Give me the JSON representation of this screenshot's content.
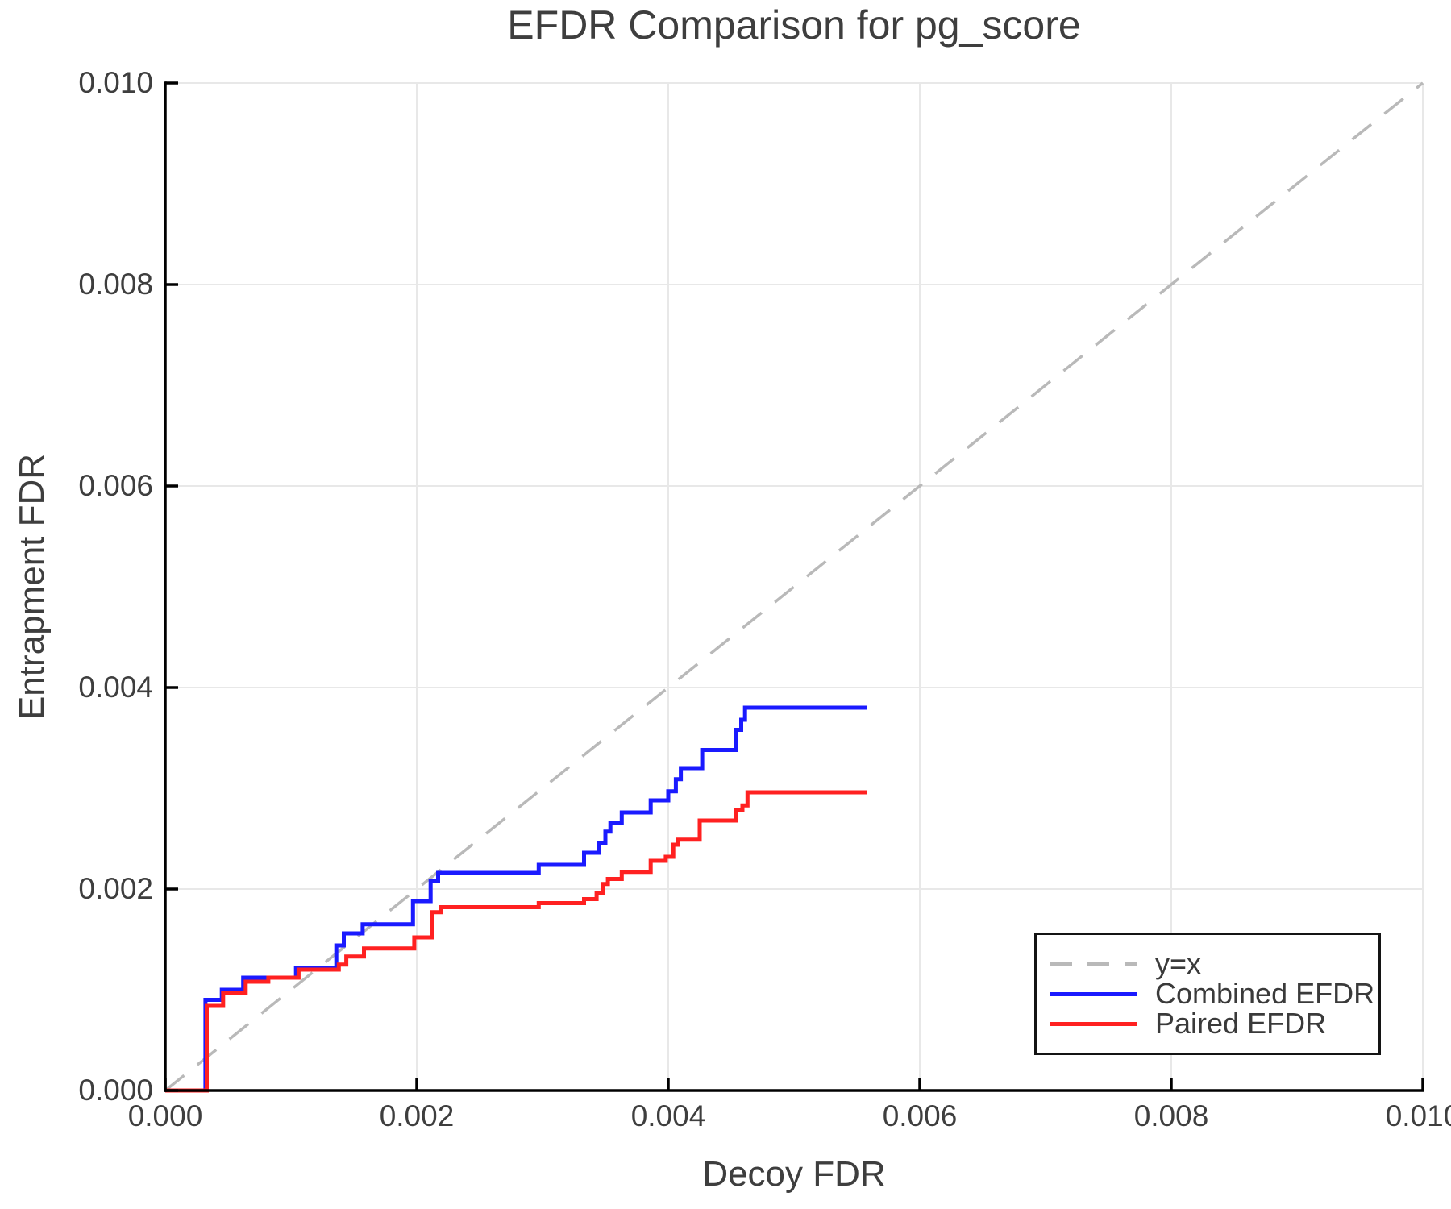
{
  "chart_data": {
    "type": "line",
    "title": "EFDR Comparison for pg_score",
    "xlabel": "Decoy FDR",
    "ylabel": "Entrapment FDR",
    "xlim": [
      0,
      0.01
    ],
    "ylim": [
      0,
      0.01
    ],
    "grid": true,
    "x_ticks": [
      0,
      0.002,
      0.004,
      0.006,
      0.008,
      0.01
    ],
    "x_tick_labels": [
      "0.000",
      "0.002",
      "0.004",
      "0.006",
      "0.008",
      "0.010"
    ],
    "y_ticks": [
      0,
      0.002,
      0.004,
      0.006,
      0.008,
      0.01
    ],
    "y_tick_labels": [
      "0.000",
      "0.002",
      "0.004",
      "0.006",
      "0.008",
      "0.010"
    ],
    "colors": {
      "grid": "#e8e8e8",
      "spine": "#000000",
      "text": "#3e3e3e",
      "reference": "#b9b9b9",
      "combined": "#1a1aff",
      "paired": "#ff2121"
    },
    "legend": {
      "position": "lower right",
      "entries": [
        {
          "label": "y=x",
          "style": "dashed",
          "color": "#b9b9b9"
        },
        {
          "label": "Combined EFDR",
          "style": "solid",
          "color": "#1a1aff"
        },
        {
          "label": "Paired EFDR",
          "style": "solid",
          "color": "#ff2121"
        }
      ]
    },
    "reference_line": {
      "label": "y=x",
      "from": [
        0,
        0
      ],
      "to": [
        0.01,
        0.01
      ],
      "dashed": true,
      "color": "#b9b9b9"
    },
    "series": [
      {
        "name": "Combined EFDR",
        "color": "#1a1aff",
        "step": true,
        "start": [
          0,
          0
        ],
        "end_x": 0.00558,
        "steps": [
          [
            0.00032,
            0.0009
          ],
          [
            0.00045,
            0.001
          ],
          [
            0.00062,
            0.00112
          ],
          [
            0.00104,
            0.00122
          ],
          [
            0.00136,
            0.00144
          ],
          [
            0.00142,
            0.00156
          ],
          [
            0.00157,
            0.00165
          ],
          [
            0.00197,
            0.00188
          ],
          [
            0.00211,
            0.00208
          ],
          [
            0.00217,
            0.00216
          ],
          [
            0.00297,
            0.00224
          ],
          [
            0.00333,
            0.00236
          ],
          [
            0.00345,
            0.00246
          ],
          [
            0.0035,
            0.00257
          ],
          [
            0.00354,
            0.00266
          ],
          [
            0.00363,
            0.00276
          ],
          [
            0.00386,
            0.00288
          ],
          [
            0.004,
            0.00297
          ],
          [
            0.00406,
            0.00309
          ],
          [
            0.0041,
            0.0032
          ],
          [
            0.00427,
            0.00338
          ],
          [
            0.00454,
            0.00358
          ],
          [
            0.00458,
            0.00368
          ],
          [
            0.00461,
            0.0038
          ]
        ]
      },
      {
        "name": "Paired EFDR",
        "color": "#ff2121",
        "step": true,
        "start": [
          0,
          0
        ],
        "end_x": 0.00558,
        "steps": [
          [
            0.00033,
            0.00084
          ],
          [
            0.00046,
            0.00097
          ],
          [
            0.00064,
            0.00108
          ],
          [
            0.00082,
            0.00112
          ],
          [
            0.00106,
            0.0012
          ],
          [
            0.00138,
            0.00125
          ],
          [
            0.00144,
            0.00133
          ],
          [
            0.00158,
            0.00141
          ],
          [
            0.00198,
            0.00152
          ],
          [
            0.00212,
            0.00177
          ],
          [
            0.00219,
            0.00182
          ],
          [
            0.00297,
            0.00186
          ],
          [
            0.00333,
            0.0019
          ],
          [
            0.00343,
            0.00196
          ],
          [
            0.00348,
            0.00205
          ],
          [
            0.00352,
            0.0021
          ],
          [
            0.00363,
            0.00217
          ],
          [
            0.00386,
            0.00228
          ],
          [
            0.00398,
            0.00232
          ],
          [
            0.00404,
            0.00244
          ],
          [
            0.00408,
            0.00249
          ],
          [
            0.00425,
            0.00268
          ],
          [
            0.00454,
            0.00278
          ],
          [
            0.00459,
            0.00283
          ],
          [
            0.00463,
            0.00296
          ]
        ]
      }
    ]
  }
}
